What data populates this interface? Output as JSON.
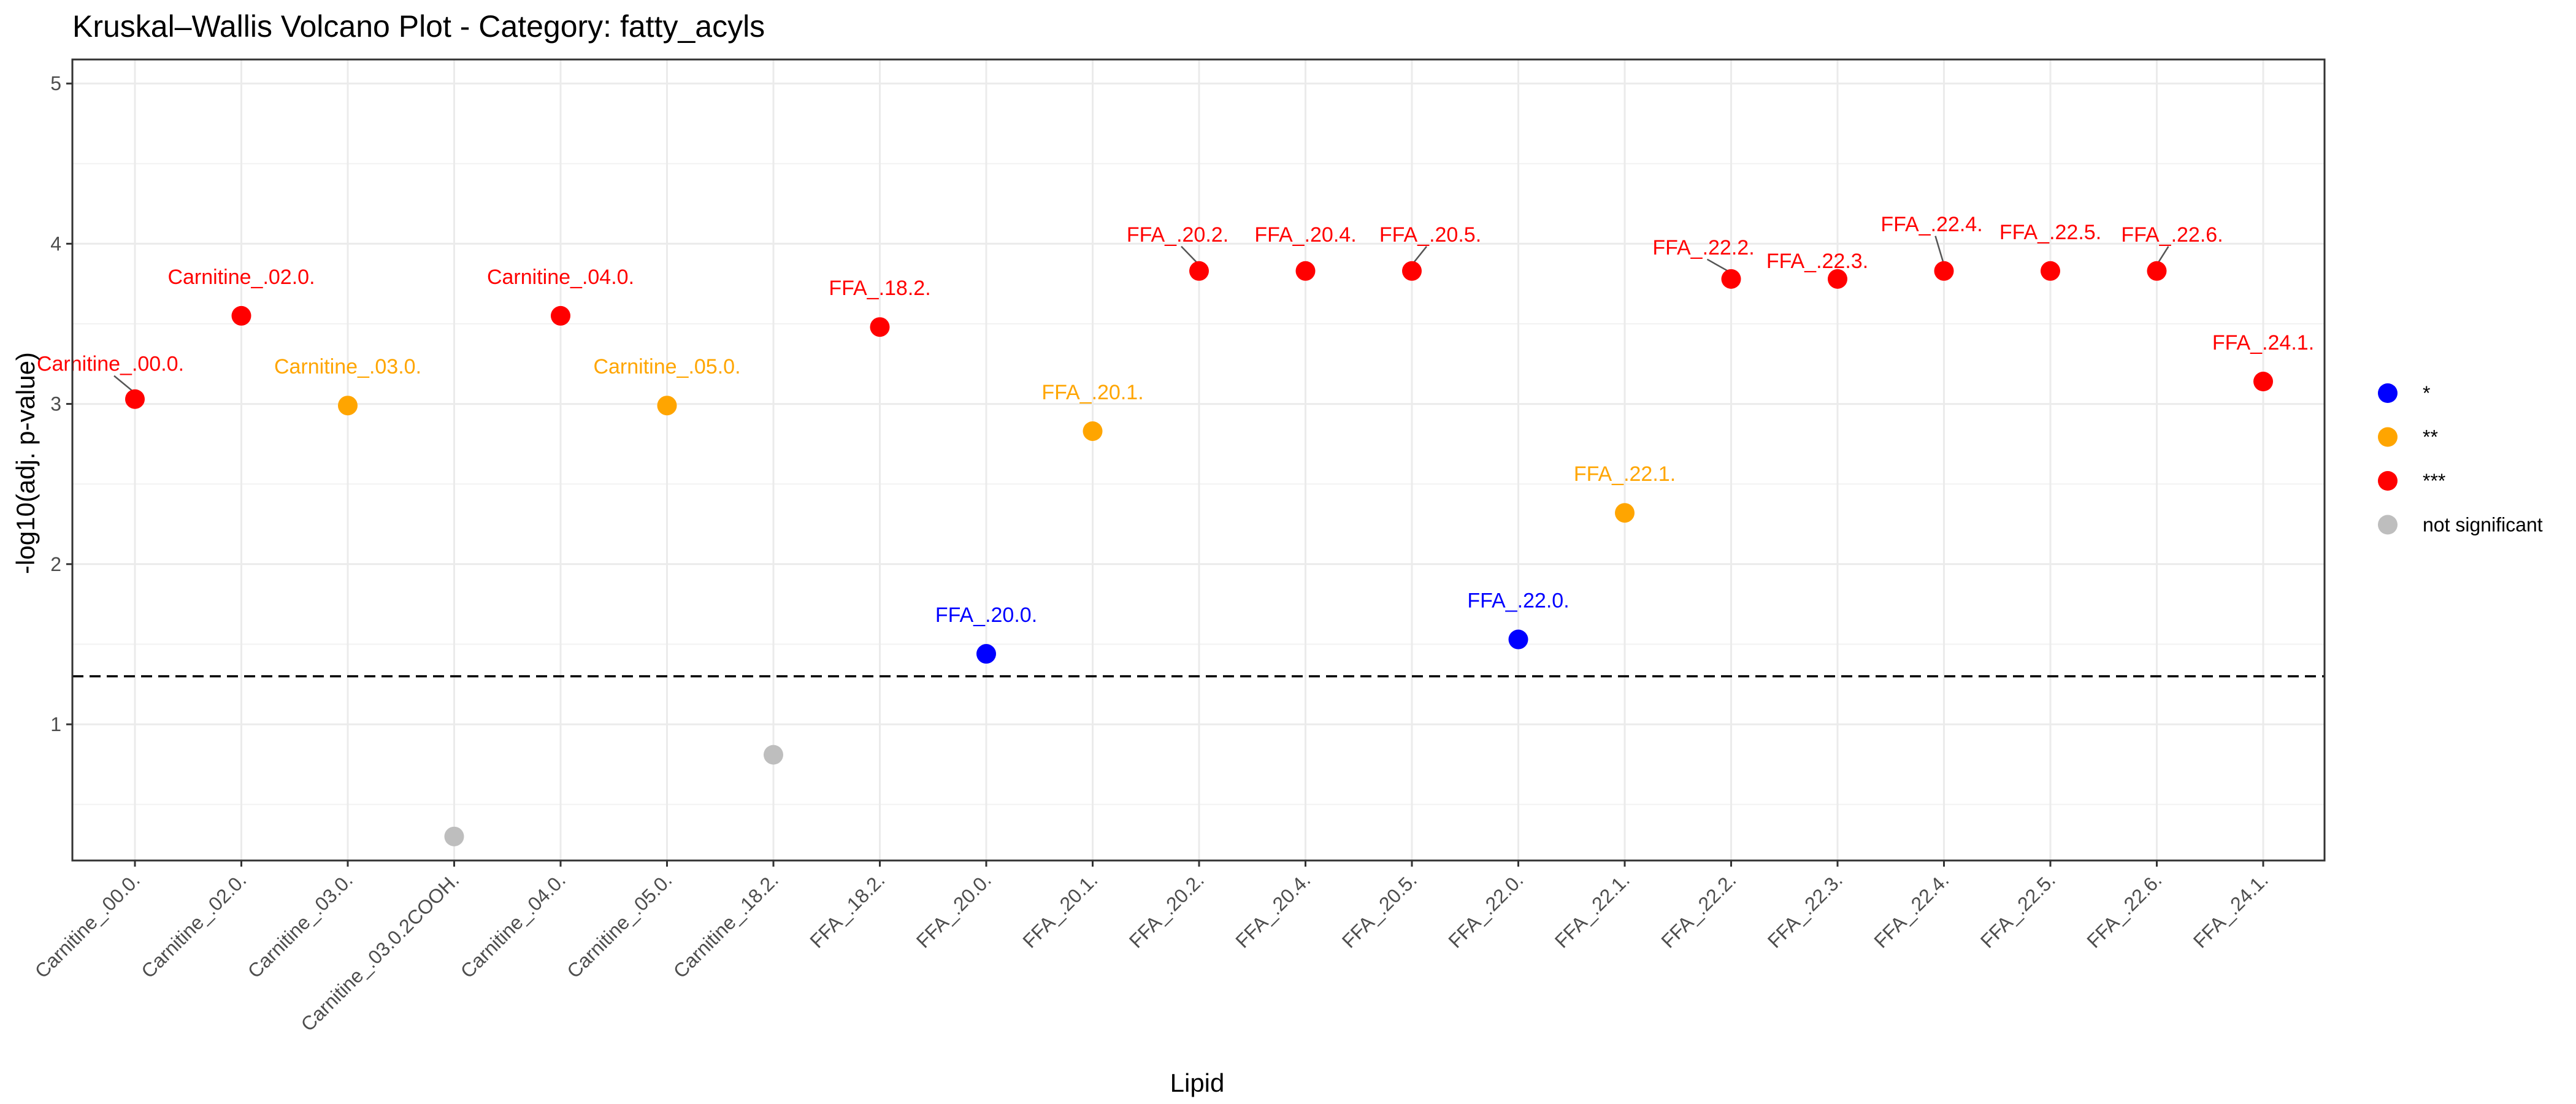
{
  "chart_data": {
    "type": "scatter",
    "title": "Kruskal–Wallis Volcano Plot - Category: fatty_acyls",
    "xlabel": "Lipid",
    "ylabel": "-log10(adj. p-value)",
    "ylim": [
      0.15,
      5.15
    ],
    "yticks": [
      1,
      2,
      3,
      4,
      5
    ],
    "ytick_labels": [
      "1",
      "2",
      "3",
      "4",
      "5"
    ],
    "grid": true,
    "threshold": 1.3,
    "categories": [
      "Carnitine_.00.0.",
      "Carnitine_.02.0.",
      "Carnitine_.03.0.",
      "Carnitine_.03.0.2COOH.",
      "Carnitine_.04.0.",
      "Carnitine_.05.0.",
      "Carnitine_.18.2.",
      "FFA_.18.2.",
      "FFA_.20.0.",
      "FFA_.20.1.",
      "FFA_.20.2.",
      "FFA_.20.4.",
      "FFA_.20.5.",
      "FFA_.22.0.",
      "FFA_.22.1.",
      "FFA_.22.2.",
      "FFA_.22.3.",
      "FFA_.22.4.",
      "FFA_.22.5.",
      "FFA_.22.6.",
      "FFA_.24.1."
    ],
    "legend": {
      "position": "right",
      "entries": [
        {
          "key": "*",
          "label": "*",
          "color": "#0000FF"
        },
        {
          "key": "**",
          "label": "**",
          "color": "#FFA500"
        },
        {
          "key": "***",
          "label": "***",
          "color": "#FF0000"
        },
        {
          "key": "ns",
          "label": "not significant",
          "color": "#BEBEBE"
        }
      ]
    },
    "points": [
      {
        "x": "Carnitine_.00.0.",
        "y": 3.03,
        "group": "***",
        "label": "Carnitine_.00.0."
      },
      {
        "x": "Carnitine_.02.0.",
        "y": 3.55,
        "group": "***",
        "label": "Carnitine_.02.0."
      },
      {
        "x": "Carnitine_.03.0.",
        "y": 2.99,
        "group": "**",
        "label": "Carnitine_.03.0."
      },
      {
        "x": "Carnitine_.03.0.2COOH.",
        "y": 0.3,
        "group": "ns",
        "label": ""
      },
      {
        "x": "Carnitine_.04.0.",
        "y": 3.55,
        "group": "***",
        "label": "Carnitine_.04.0."
      },
      {
        "x": "Carnitine_.05.0.",
        "y": 2.99,
        "group": "**",
        "label": "Carnitine_.05.0."
      },
      {
        "x": "Carnitine_.18.2.",
        "y": 0.81,
        "group": "ns",
        "label": ""
      },
      {
        "x": "FFA_.18.2.",
        "y": 3.48,
        "group": "***",
        "label": "FFA_.18.2."
      },
      {
        "x": "FFA_.20.0.",
        "y": 1.44,
        "group": "*",
        "label": "FFA_.20.0."
      },
      {
        "x": "FFA_.20.1.",
        "y": 2.83,
        "group": "**",
        "label": "FFA_.20.1."
      },
      {
        "x": "FFA_.20.2.",
        "y": 3.83,
        "group": "***",
        "label": "FFA_.20.2."
      },
      {
        "x": "FFA_.20.4.",
        "y": 3.83,
        "group": "***",
        "label": "FFA_.20.4."
      },
      {
        "x": "FFA_.20.5.",
        "y": 3.83,
        "group": "***",
        "label": "FFA_.20.5."
      },
      {
        "x": "FFA_.22.0.",
        "y": 1.53,
        "group": "*",
        "label": "FFA_.22.0."
      },
      {
        "x": "FFA_.22.1.",
        "y": 2.32,
        "group": "**",
        "label": "FFA_.22.1."
      },
      {
        "x": "FFA_.22.2.",
        "y": 3.78,
        "group": "***",
        "label": "FFA_.22.2."
      },
      {
        "x": "FFA_.22.3.",
        "y": 3.78,
        "group": "***",
        "label": "FFA_.22.3."
      },
      {
        "x": "FFA_.22.4.",
        "y": 3.83,
        "group": "***",
        "label": "FFA_.22.4."
      },
      {
        "x": "FFA_.22.5.",
        "y": 3.83,
        "group": "***",
        "label": "FFA_.22.5."
      },
      {
        "x": "FFA_.22.6.",
        "y": 3.83,
        "group": "***",
        "label": "FFA_.22.6."
      },
      {
        "x": "FFA_.24.1.",
        "y": 3.14,
        "group": "***",
        "label": "FFA_.24.1."
      }
    ]
  }
}
